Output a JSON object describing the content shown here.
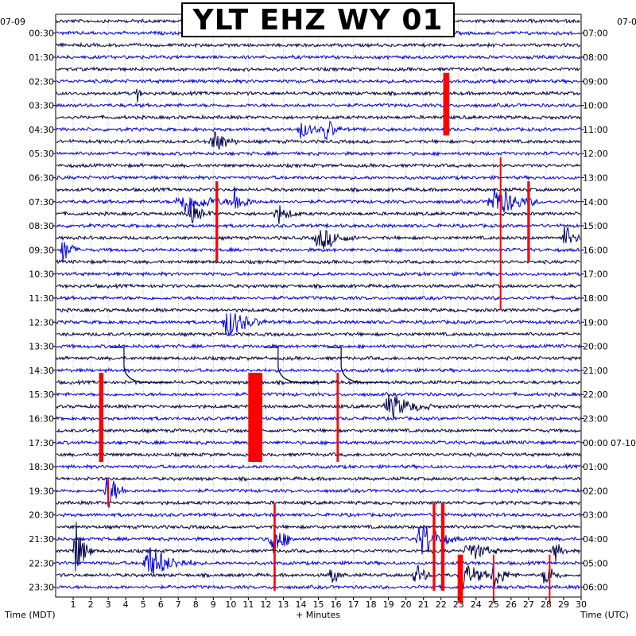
{
  "chart_data": {
    "type": "helicorder",
    "title": "YLT EHZ WY 01",
    "start_date_left": "07-09",
    "start_date_right": "07-0",
    "next_date_right": "07-10",
    "xlabel": "+ Minutes",
    "left_axis_label": "Time (MDT)",
    "right_axis_label": "Time (UTC)",
    "x_ticks": [
      "1",
      "2",
      "3",
      "4",
      "5",
      "6",
      "7",
      "8",
      "9",
      "10",
      "11",
      "12",
      "13",
      "14",
      "15",
      "16",
      "17",
      "18",
      "19",
      "20",
      "21",
      "22",
      "23",
      "24",
      "25",
      "26",
      "27",
      "28",
      "29",
      "30"
    ],
    "xlim": [
      0,
      30
    ],
    "left_times": [
      "00:30",
      "01:30",
      "02:30",
      "03:30",
      "04:30",
      "05:30",
      "06:30",
      "07:30",
      "08:30",
      "09:30",
      "10:30",
      "11:30",
      "12:30",
      "13:30",
      "14:30",
      "15:30",
      "16:30",
      "17:30",
      "18:30",
      "19:30",
      "20:30",
      "21:30",
      "22:30",
      "23:30"
    ],
    "right_times": [
      "07:00",
      "08:00",
      "09:00",
      "10:00",
      "11:00",
      "12:00",
      "13:00",
      "14:00",
      "15:00",
      "16:00",
      "17:00",
      "18:00",
      "19:00",
      "20:00",
      "21:00",
      "22:00",
      "23:00",
      "00:00",
      "01:00",
      "02:00",
      "03:00",
      "04:00",
      "05:00",
      "06:00"
    ],
    "trace_count": 48,
    "trace_colors": [
      "#00004a",
      "#0000dd"
    ],
    "clip_color": "#ff0000",
    "minutes_per_line": 30,
    "grid": true,
    "events": [
      {
        "line": 6,
        "minute": 4.6,
        "amp": 0.35,
        "dur": 0.3
      },
      {
        "line": 9,
        "minute": 13.8,
        "amp": 0.25,
        "dur": 1.6
      },
      {
        "line": 9,
        "minute": 15.3,
        "amp": 0.4,
        "dur": 1.0
      },
      {
        "line": 10,
        "minute": 8.8,
        "amp": 0.4,
        "dur": 1.6
      },
      {
        "line": 15,
        "minute": 6.9,
        "amp": 0.35,
        "dur": 3.5
      },
      {
        "line": 15,
        "minute": 10.0,
        "amp": 0.4,
        "dur": 1.5
      },
      {
        "line": 15,
        "minute": 24.7,
        "amp": 0.5,
        "dur": 3.0
      },
      {
        "line": 16,
        "minute": 7.5,
        "amp": 0.3,
        "dur": 1.5
      },
      {
        "line": 16,
        "minute": 12.5,
        "amp": 0.25,
        "dur": 1.5
      },
      {
        "line": 18,
        "minute": 14.8,
        "amp": 0.35,
        "dur": 2.5
      },
      {
        "line": 18,
        "minute": 28.9,
        "amp": 0.35,
        "dur": 1.2
      },
      {
        "line": 19,
        "minute": 0.3,
        "amp": 0.5,
        "dur": 1.0
      },
      {
        "line": 25,
        "minute": 9.5,
        "amp": 0.45,
        "dur": 2.5
      },
      {
        "line": 32,
        "minute": 18.7,
        "amp": 0.35,
        "dur": 3.0
      },
      {
        "line": 39,
        "minute": 2.8,
        "amp": 0.7,
        "dur": 1.2
      },
      {
        "line": 43,
        "minute": 12.2,
        "amp": 0.6,
        "dur": 1.5
      },
      {
        "line": 43,
        "minute": 20.6,
        "amp": 0.5,
        "dur": 2.5
      },
      {
        "line": 44,
        "minute": 1.0,
        "amp": 0.9,
        "dur": 1.2
      },
      {
        "line": 44,
        "minute": 23.4,
        "amp": 0.35,
        "dur": 2.0
      },
      {
        "line": 44,
        "minute": 28.3,
        "amp": 0.3,
        "dur": 1.0
      },
      {
        "line": 45,
        "minute": 5.0,
        "amp": 0.5,
        "dur": 3.0
      },
      {
        "line": 46,
        "minute": 15.6,
        "amp": 0.3,
        "dur": 1.0
      },
      {
        "line": 46,
        "minute": 20.4,
        "amp": 0.35,
        "dur": 1.2
      },
      {
        "line": 46,
        "minute": 23.0,
        "amp": 0.45,
        "dur": 2.0
      },
      {
        "line": 46,
        "minute": 24.8,
        "amp": 0.4,
        "dur": 1.5
      },
      {
        "line": 46,
        "minute": 27.8,
        "amp": 0.4,
        "dur": 1.2
      }
    ],
    "clips": [
      {
        "line": 4,
        "minute": 22.3,
        "from": 4.3,
        "to": 9.5,
        "width": 0.35
      },
      {
        "line": 13,
        "minute": 9.2,
        "from": 13.3,
        "to": 20.0,
        "width": 0.15
      },
      {
        "line": 13,
        "minute": 27.0,
        "from": 13.3,
        "to": 20.0,
        "width": 0.15
      },
      {
        "line": 11,
        "minute": 25.4,
        "from": 11.3,
        "to": 24.0,
        "width": 0.08
      },
      {
        "line": 30,
        "minute": 2.6,
        "from": 29.2,
        "to": 36.6,
        "width": 0.25
      },
      {
        "line": 30,
        "minute": 11.4,
        "from": 29.2,
        "to": 36.6,
        "width": 0.8
      },
      {
        "line": 30,
        "minute": 16.1,
        "from": 29.2,
        "to": 36.6,
        "width": 0.12
      },
      {
        "line": 40,
        "minute": 12.5,
        "from": 40.0,
        "to": 47.3,
        "width": 0.12
      },
      {
        "line": 40,
        "minute": 21.6,
        "from": 40.0,
        "to": 47.3,
        "width": 0.15
      },
      {
        "line": 40,
        "minute": 22.1,
        "from": 40.0,
        "to": 47.3,
        "width": 0.2
      },
      {
        "line": 44,
        "minute": 23.1,
        "from": 44.3,
        "to": 48.3,
        "width": 0.3
      },
      {
        "line": 44,
        "minute": 25.0,
        "from": 44.3,
        "to": 48.3,
        "width": 0.08
      },
      {
        "line": 44,
        "minute": 28.2,
        "from": 44.3,
        "to": 48.3,
        "width": 0.08
      },
      {
        "line": 39,
        "minute": 3.0,
        "from": 38.0,
        "to": 40.3,
        "width": 0.08
      }
    ],
    "steps": [
      {
        "line": 30,
        "minute": 3.9,
        "shape": "decay"
      },
      {
        "line": 30,
        "minute": 12.7,
        "shape": "decay"
      },
      {
        "line": 30,
        "minute": 16.3,
        "shape": "decay"
      }
    ]
  }
}
